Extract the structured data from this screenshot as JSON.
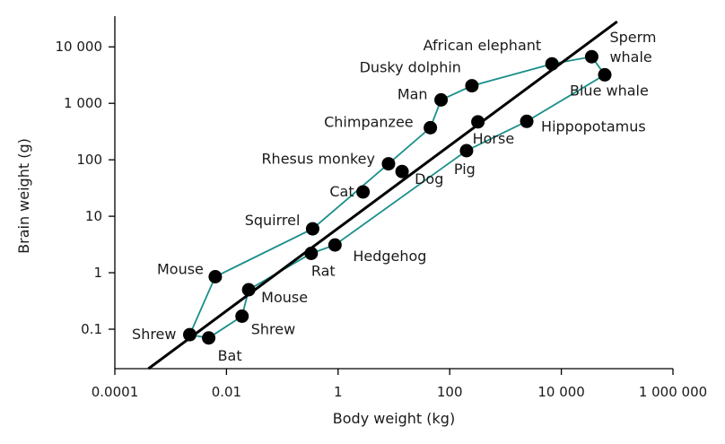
{
  "chart_data": {
    "type": "scatter",
    "xlabel": "Body weight (kg)",
    "ylabel": "Brain weight (g)",
    "x_scale": "log",
    "y_scale": "log",
    "xlim": [
      0.0001,
      1000000
    ],
    "ylim": [
      0.02,
      35000
    ],
    "x_ticks": [
      {
        "value": 0.0001,
        "label": "0.0001"
      },
      {
        "value": 0.01,
        "label": "0.01"
      },
      {
        "value": 1,
        "label": "1"
      },
      {
        "value": 100,
        "label": "100"
      },
      {
        "value": 10000,
        "label": "10 000"
      },
      {
        "value": 1000000,
        "label": "1 000 000"
      }
    ],
    "y_ticks": [
      {
        "value": 0.1,
        "label": "0.1"
      },
      {
        "value": 1,
        "label": "1"
      },
      {
        "value": 10,
        "label": "10"
      },
      {
        "value": 100,
        "label": "100"
      },
      {
        "value": 1000,
        "label": "1 000"
      },
      {
        "value": 10000,
        "label": "10 000"
      }
    ],
    "regression_line": {
      "x1": 0.0004,
      "y1": 0.02,
      "x2": 100000,
      "y2": 28000,
      "color": "#000000"
    },
    "connector_color": "#1a8f8a",
    "point_color": "#000000",
    "points": [
      {
        "name": "Shrew",
        "label": "Shrew",
        "x": 0.0022,
        "y": 0.08
      },
      {
        "name": "Bat",
        "label": "Bat",
        "x": 0.0048,
        "y": 0.07
      },
      {
        "name": "Mouse",
        "label": "Mouse",
        "x": 0.0063,
        "y": 0.85
      },
      {
        "name": "Mouse",
        "label": "Mouse",
        "x": 0.025,
        "y": 0.5
      },
      {
        "name": "Shrew",
        "label": "Shrew",
        "x": 0.019,
        "y": 0.17
      },
      {
        "name": "Squirrel",
        "label": "Squirrel",
        "x": 0.35,
        "y": 6
      },
      {
        "name": "Rat",
        "label": "Rat",
        "x": 0.33,
        "y": 2.2
      },
      {
        "name": "Hedgehog",
        "label": "Hedgehog",
        "x": 0.88,
        "y": 3.1
      },
      {
        "name": "Cat",
        "label": "Cat",
        "x": 2.8,
        "y": 27
      },
      {
        "name": "Rhesus monkey",
        "label": "Rhesus monkey",
        "x": 8,
        "y": 85
      },
      {
        "name": "Dog",
        "label": "Dog",
        "x": 14,
        "y": 62
      },
      {
        "name": "Chimpanzee",
        "label": "Chimpanzee",
        "x": 45,
        "y": 370
      },
      {
        "name": "Man",
        "label": "Man",
        "x": 70,
        "y": 1150
      },
      {
        "name": "Dusky dolphin",
        "label": "Dusky dolphin",
        "x": 250,
        "y": 2050
      },
      {
        "name": "Pig",
        "label": "Pig",
        "x": 200,
        "y": 145
      },
      {
        "name": "Horse",
        "label": "Horse",
        "x": 320,
        "y": 470
      },
      {
        "name": "Hippopotamus",
        "label": "Hippopotamus",
        "x": 2400,
        "y": 480
      },
      {
        "name": "African elephant",
        "label": "African elephant",
        "x": 6800,
        "y": 5000
      },
      {
        "name": "Sperm whale",
        "label": "Sperm\nwhale",
        "x": 35000,
        "y": 6700
      },
      {
        "name": "Blue whale",
        "label": "Blue whale",
        "x": 60000,
        "y": 3200
      }
    ],
    "connectors": [
      {
        "group": "upper",
        "path": [
          [
            0.0022,
            0.08
          ],
          [
            0.0063,
            0.85
          ],
          [
            0.35,
            6
          ],
          [
            8,
            85
          ],
          [
            45,
            370
          ],
          [
            70,
            1150
          ],
          [
            250,
            2050
          ],
          [
            6800,
            5000
          ],
          [
            35000,
            6700
          ]
        ]
      },
      {
        "group": "lower",
        "path": [
          [
            0.0022,
            0.08
          ],
          [
            0.0048,
            0.07
          ],
          [
            0.019,
            0.17
          ],
          [
            0.025,
            0.5
          ],
          [
            0.33,
            2.2
          ],
          [
            0.88,
            3.1
          ],
          [
            200,
            145
          ],
          [
            2400,
            480
          ],
          [
            60000,
            3200
          ],
          [
            35000,
            6700
          ]
        ]
      }
    ]
  }
}
